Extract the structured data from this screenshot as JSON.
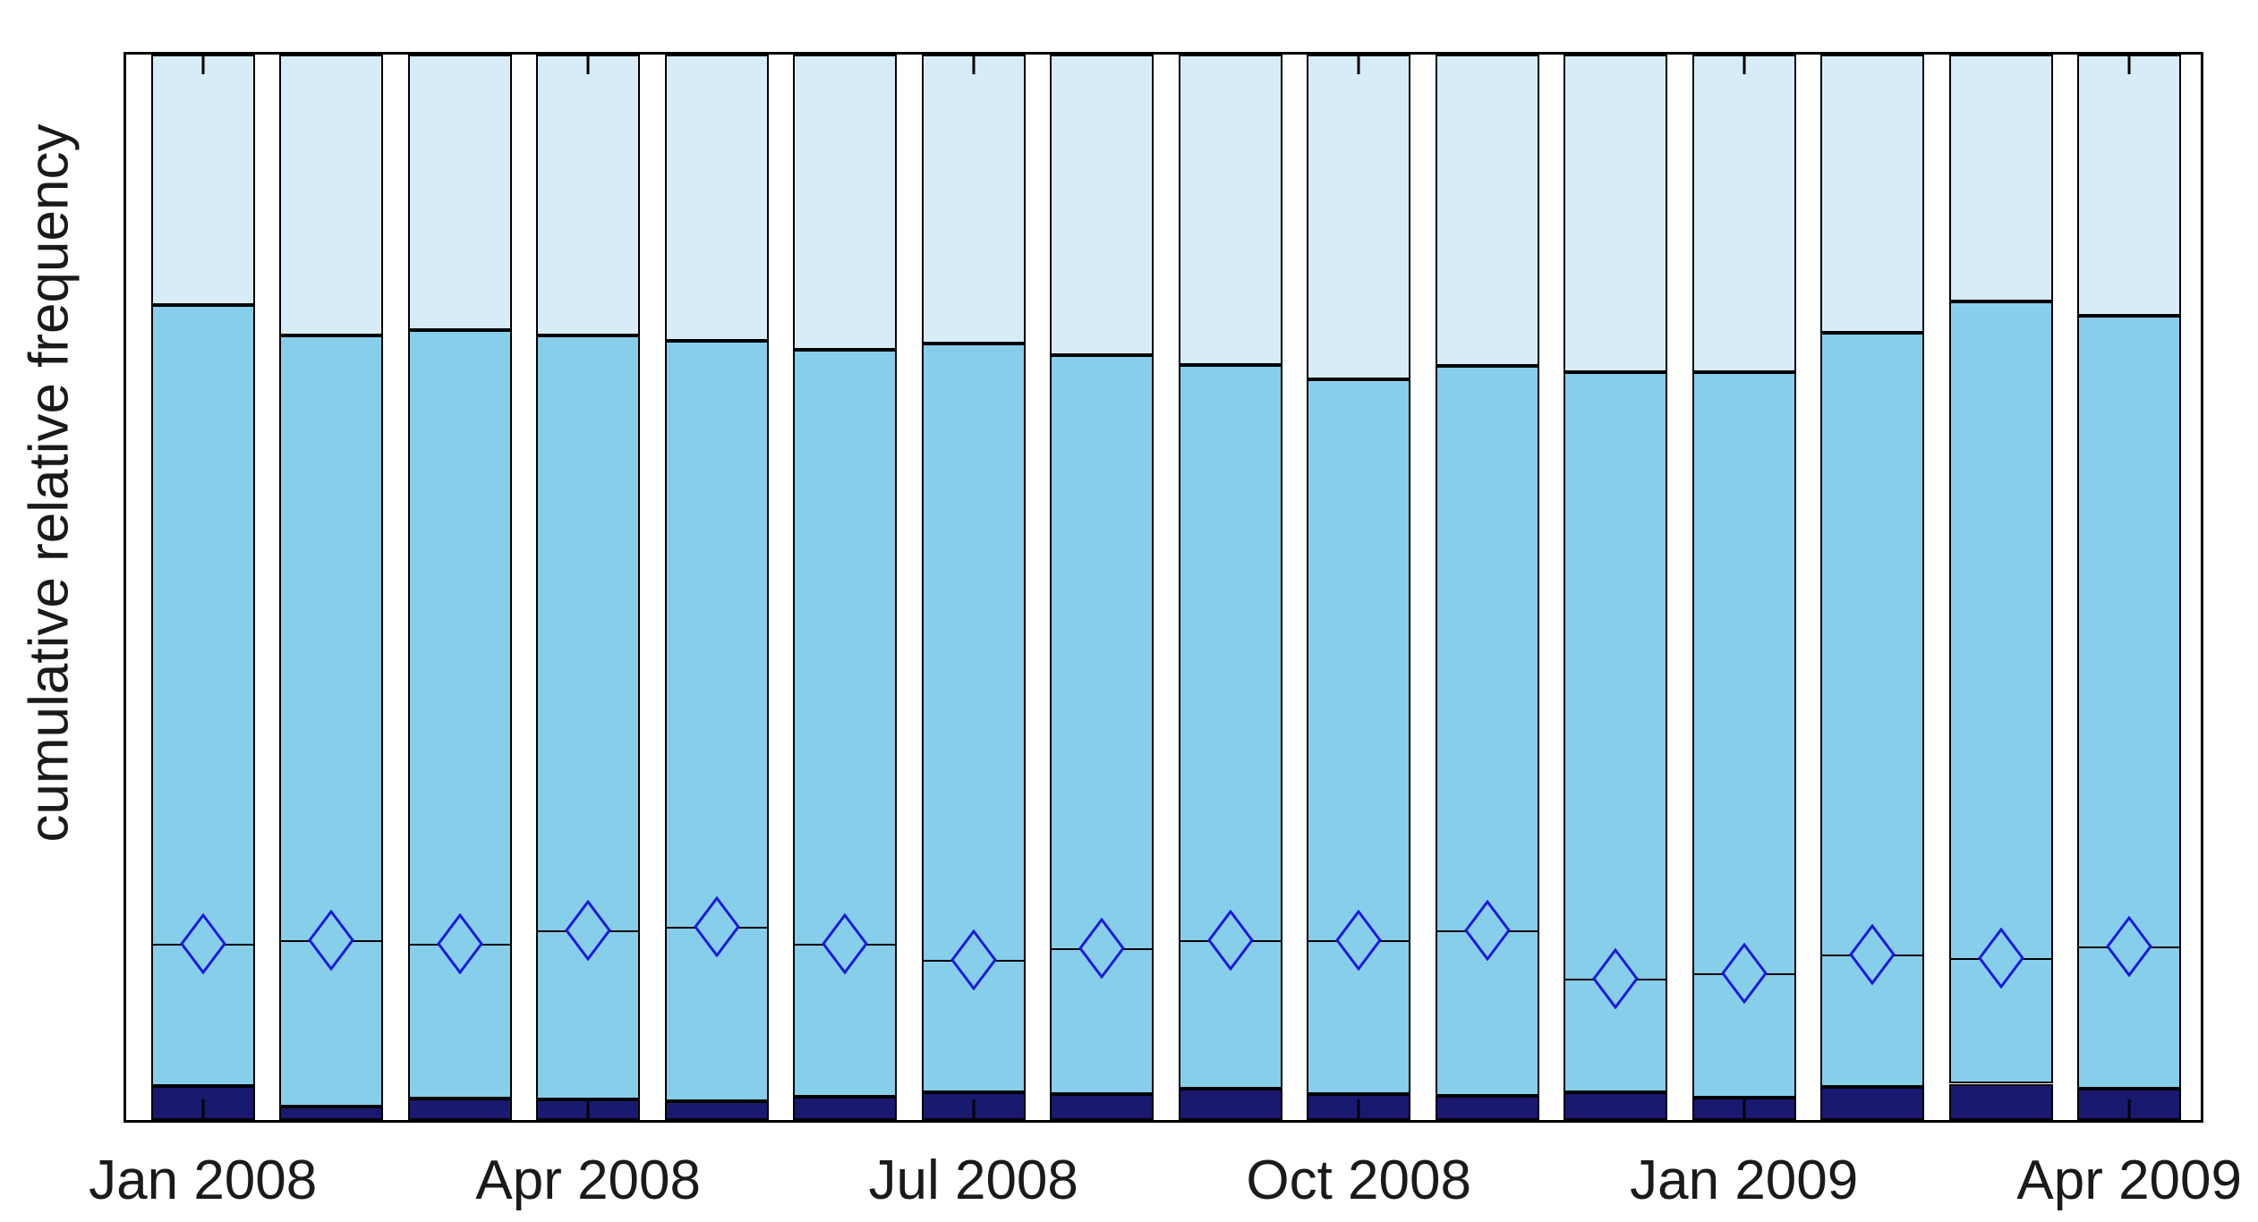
{
  "figure": {
    "background_color": "#ffffff",
    "axis_color": "#000000",
    "text_color": "#1a1a1a"
  },
  "chart_data": {
    "type": "bar",
    "subtype": "stacked-cumulative-relative-frequency",
    "title": "",
    "xlabel": "",
    "ylabel": "cumulative relative frequency",
    "ylim": [
      0,
      1
    ],
    "grid": false,
    "legend": "none",
    "n_bars": 16,
    "categories": [
      "Jan 2008",
      "",
      "",
      "Apr 2008",
      "",
      "",
      "Jul 2008",
      "",
      "",
      "Oct 2008",
      "",
      "",
      "Jan 2009",
      "",
      "",
      "Apr 2009"
    ],
    "x_tick_labels": [
      "Jan 2008",
      "Apr 2008",
      "Jul 2008",
      "Oct 2008",
      "Jan 2009",
      "Apr 2009"
    ],
    "x_tick_bar_indices": [
      0,
      3,
      6,
      9,
      12,
      15
    ],
    "series": [
      {
        "name": "bottom-segment-dark-navy",
        "color": "#191970",
        "cumulative_top": [
          0.032,
          0.013,
          0.02,
          0.019,
          0.018,
          0.022,
          0.026,
          0.024,
          0.029,
          0.024,
          0.023,
          0.026,
          0.021,
          0.031,
          0.034,
          0.029
        ]
      },
      {
        "name": "middle-segment-sky-blue",
        "color": "#87CEEB",
        "cumulative_top": [
          0.765,
          0.736,
          0.741,
          0.736,
          0.731,
          0.723,
          0.729,
          0.718,
          0.709,
          0.695,
          0.708,
          0.702,
          0.702,
          0.739,
          0.768,
          0.755
        ]
      },
      {
        "name": "top-segment-pale-blue",
        "color": "#D8ECF8",
        "cumulative_top": [
          1,
          1,
          1,
          1,
          1,
          1,
          1,
          1,
          1,
          1,
          1,
          1,
          1,
          1,
          1,
          1
        ]
      }
    ],
    "markers": {
      "shape": "diamond",
      "color": "#1a1ade",
      "fill": "#87CEEB",
      "line_color": "#000000",
      "values": [
        0.165,
        0.169,
        0.165,
        0.178,
        0.181,
        0.165,
        0.15,
        0.161,
        0.169,
        0.169,
        0.178,
        0.133,
        0.138,
        0.155,
        0.152,
        0.163
      ]
    }
  }
}
